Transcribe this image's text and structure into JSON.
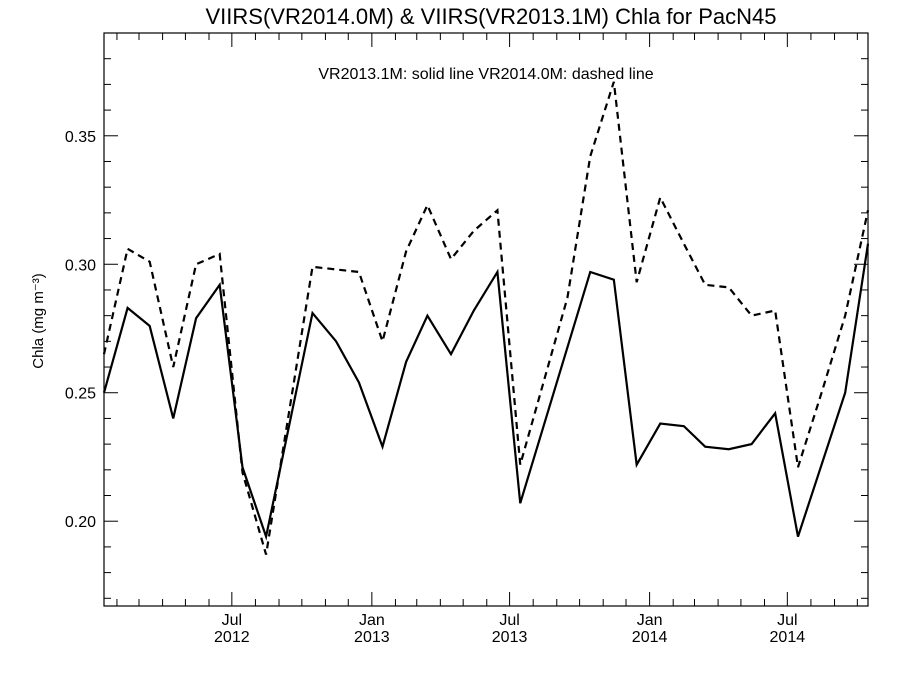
{
  "chart_data": {
    "type": "line",
    "title": "VIIRS(VR2014.0M) & VIIRS(VR2013.1M)  Chla for PacN45",
    "annotation": "VR2013.1M: solid line   VR2014.0M: dashed line",
    "ylabel": "Chla (mg m⁻³)",
    "xlabel": "",
    "xlim": [
      "2012-01-15",
      "2014-10-15"
    ],
    "ylim": [
      0.167,
      0.39
    ],
    "y_ticks": [
      {
        "value": 0.2,
        "label": "0.20"
      },
      {
        "value": 0.25,
        "label": "0.25"
      },
      {
        "value": 0.3,
        "label": "0.30"
      },
      {
        "value": 0.35,
        "label": "0.35"
      }
    ],
    "x_ticks": [
      {
        "date": "2012-07-01",
        "month": "Jul",
        "year": "2012"
      },
      {
        "date": "2013-01-01",
        "month": "Jan",
        "year": "2013"
      },
      {
        "date": "2013-07-01",
        "month": "Jul",
        "year": "2013"
      },
      {
        "date": "2014-01-01",
        "month": "Jan",
        "year": "2014"
      },
      {
        "date": "2014-07-01",
        "month": "Jul",
        "year": "2014"
      }
    ],
    "grid": false,
    "series": [
      {
        "name": "VR2013.1M",
        "style": "solid",
        "color": "#000000",
        "points": [
          [
            "2012-01-15",
            0.25
          ],
          [
            "2012-02-15",
            0.283
          ],
          [
            "2012-03-15",
            0.276
          ],
          [
            "2012-04-15",
            0.24
          ],
          [
            "2012-05-15",
            0.279
          ],
          [
            "2012-06-15",
            0.292
          ],
          [
            "2012-07-15",
            0.221
          ],
          [
            "2012-08-15",
            0.194
          ],
          [
            "2012-10-15",
            0.281
          ],
          [
            "2012-11-15",
            0.27
          ],
          [
            "2012-12-15",
            0.254
          ],
          [
            "2013-01-15",
            0.229
          ],
          [
            "2013-02-15",
            0.262
          ],
          [
            "2013-03-15",
            0.28
          ],
          [
            "2013-04-15",
            0.265
          ],
          [
            "2013-05-15",
            0.282
          ],
          [
            "2013-06-15",
            0.297
          ],
          [
            "2013-07-15",
            0.207
          ],
          [
            "2013-10-15",
            0.297
          ],
          [
            "2013-11-15",
            0.294
          ],
          [
            "2013-12-15",
            0.222
          ],
          [
            "2014-01-15",
            0.238
          ],
          [
            "2014-02-15",
            0.237
          ],
          [
            "2014-03-15",
            0.229
          ],
          [
            "2014-04-15",
            0.228
          ],
          [
            "2014-05-15",
            0.23
          ],
          [
            "2014-06-15",
            0.242
          ],
          [
            "2014-07-15",
            0.194
          ],
          [
            "2014-09-15",
            0.25
          ],
          [
            "2014-10-15",
            0.308
          ]
        ]
      },
      {
        "name": "VR2014.0M",
        "style": "dashed",
        "color": "#000000",
        "points": [
          [
            "2012-01-15",
            0.265
          ],
          [
            "2012-02-15",
            0.306
          ],
          [
            "2012-03-15",
            0.301
          ],
          [
            "2012-04-15",
            0.26
          ],
          [
            "2012-05-15",
            0.3
          ],
          [
            "2012-06-15",
            0.304
          ],
          [
            "2012-07-15",
            0.219
          ],
          [
            "2012-08-15",
            0.187
          ],
          [
            "2012-10-15",
            0.299
          ],
          [
            "2012-12-15",
            0.297
          ],
          [
            "2013-01-15",
            0.27
          ],
          [
            "2013-02-15",
            0.305
          ],
          [
            "2013-03-15",
            0.323
          ],
          [
            "2013-04-15",
            0.302
          ],
          [
            "2013-05-15",
            0.313
          ],
          [
            "2013-06-15",
            0.321
          ],
          [
            "2013-07-15",
            0.222
          ],
          [
            "2013-09-15",
            0.287
          ],
          [
            "2013-10-15",
            0.342
          ],
          [
            "2013-11-15",
            0.371
          ],
          [
            "2013-12-15",
            0.293
          ],
          [
            "2014-01-15",
            0.326
          ],
          [
            "2014-02-15",
            0.308
          ],
          [
            "2014-03-15",
            0.292
          ],
          [
            "2014-04-15",
            0.291
          ],
          [
            "2014-05-15",
            0.28
          ],
          [
            "2014-06-15",
            0.282
          ],
          [
            "2014-07-15",
            0.221
          ],
          [
            "2014-08-15",
            0.25
          ],
          [
            "2014-09-15",
            0.28
          ],
          [
            "2014-10-15",
            0.321
          ]
        ]
      }
    ]
  }
}
